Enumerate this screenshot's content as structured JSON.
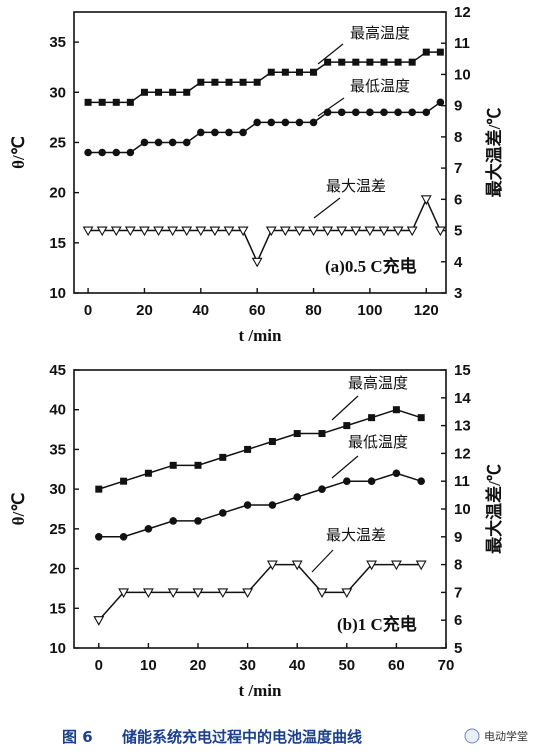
{
  "figure": {
    "caption_label": "图 6",
    "caption_text": "储能系统充电过程中的电池温度曲线",
    "watermark": "电动学堂"
  },
  "chart_data": [
    {
      "type": "line",
      "panel_label": "(a)0.5 C充电",
      "xlabel": "t /min",
      "ylabel_left": "θ/℃",
      "ylabel_right": "最大温差/℃",
      "xlim": [
        -5,
        127
      ],
      "xticks": [
        0,
        20,
        40,
        60,
        80,
        100,
        120
      ],
      "ylim_left": [
        10,
        38
      ],
      "yticks_left": [
        10,
        15,
        20,
        25,
        30,
        35
      ],
      "ylim_right": [
        3,
        12
      ],
      "yticks_right": [
        3,
        4,
        5,
        6,
        7,
        8,
        9,
        10,
        11,
        12
      ],
      "grid": false,
      "series": [
        {
          "name": "最高温度",
          "axis": "left",
          "marker": "square",
          "x": [
            0,
            5,
            10,
            15,
            20,
            25,
            30,
            35,
            40,
            45,
            50,
            55,
            60,
            65,
            70,
            75,
            80,
            85,
            90,
            95,
            100,
            105,
            110,
            115,
            120,
            125
          ],
          "y": [
            29,
            29,
            29,
            29,
            30,
            30,
            30,
            30,
            31,
            31,
            31,
            31,
            31,
            32,
            32,
            32,
            32,
            33,
            33,
            33,
            33,
            33,
            33,
            33,
            34,
            34
          ]
        },
        {
          "name": "最低温度",
          "axis": "left",
          "marker": "circle",
          "x": [
            0,
            5,
            10,
            15,
            20,
            25,
            30,
            35,
            40,
            45,
            50,
            55,
            60,
            65,
            70,
            75,
            80,
            85,
            90,
            95,
            100,
            105,
            110,
            115,
            120,
            125
          ],
          "y": [
            24,
            24,
            24,
            24,
            25,
            25,
            25,
            25,
            26,
            26,
            26,
            26,
            27,
            27,
            27,
            27,
            27,
            28,
            28,
            28,
            28,
            28,
            28,
            28,
            28,
            29
          ]
        },
        {
          "name": "最大温差",
          "axis": "right",
          "marker": "triangle-down-open",
          "x": [
            0,
            5,
            10,
            15,
            20,
            25,
            30,
            35,
            40,
            45,
            50,
            55,
            60,
            65,
            70,
            75,
            80,
            85,
            90,
            95,
            100,
            105,
            110,
            115,
            120,
            125
          ],
          "y": [
            5,
            5,
            5,
            5,
            5,
            5,
            5,
            5,
            5,
            5,
            5,
            5,
            4,
            5,
            5,
            5,
            5,
            5,
            5,
            5,
            5,
            5,
            5,
            5,
            6,
            5
          ]
        }
      ],
      "annotations": [
        {
          "text": "最高温度",
          "series": 0
        },
        {
          "text": "最低温度",
          "series": 1
        },
        {
          "text": "最大温差",
          "series": 2
        }
      ]
    },
    {
      "type": "line",
      "panel_label": "(b)1 C充电",
      "xlabel": "t /min",
      "ylabel_left": "θ/℃",
      "ylabel_right": "最大温差/℃",
      "xlim": [
        -5,
        70
      ],
      "xticks": [
        0,
        10,
        20,
        30,
        40,
        50,
        60,
        70
      ],
      "ylim_left": [
        10,
        45
      ],
      "yticks_left": [
        10,
        15,
        20,
        25,
        30,
        35,
        40,
        45
      ],
      "ylim_right": [
        5,
        15
      ],
      "yticks_right": [
        5,
        6,
        7,
        8,
        9,
        10,
        11,
        12,
        13,
        14,
        15
      ],
      "grid": false,
      "series": [
        {
          "name": "最高温度",
          "axis": "left",
          "marker": "square",
          "x": [
            0,
            5,
            10,
            15,
            20,
            25,
            30,
            35,
            40,
            45,
            50,
            55,
            60,
            65
          ],
          "y": [
            30,
            31,
            32,
            33,
            33,
            34,
            35,
            36,
            37,
            37,
            38,
            39,
            40,
            39
          ]
        },
        {
          "name": "最低温度",
          "axis": "left",
          "marker": "circle",
          "x": [
            0,
            5,
            10,
            15,
            20,
            25,
            30,
            35,
            40,
            45,
            50,
            55,
            60,
            65
          ],
          "y": [
            24,
            24,
            25,
            26,
            26,
            27,
            28,
            28,
            29,
            30,
            31,
            31,
            32,
            31
          ]
        },
        {
          "name": "最大温差",
          "axis": "right",
          "marker": "triangle-down-open",
          "x": [
            0,
            5,
            10,
            15,
            20,
            25,
            30,
            35,
            40,
            45,
            50,
            55,
            60,
            65
          ],
          "y": [
            6,
            7,
            7,
            7,
            7,
            7,
            7,
            8,
            8,
            7,
            7,
            8,
            8,
            8
          ]
        }
      ],
      "annotations": [
        {
          "text": "最高温度",
          "series": 0
        },
        {
          "text": "最低温度",
          "series": 1
        },
        {
          "text": "最大温差",
          "series": 2
        }
      ]
    }
  ]
}
